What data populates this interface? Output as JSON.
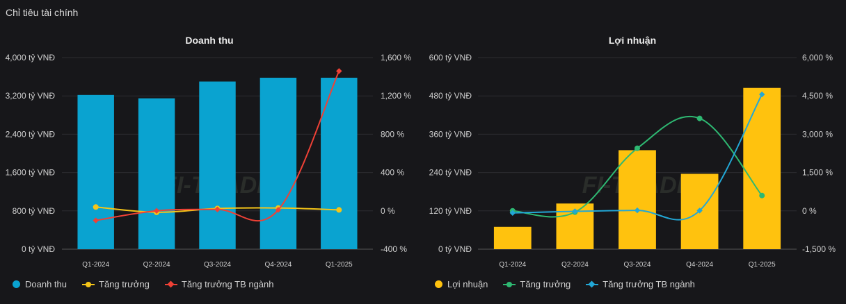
{
  "header": {
    "title": "Chỉ tiêu tài chính"
  },
  "colors": {
    "background": "#17171a",
    "revenue_bar": "#0aa3d0",
    "profit_bar": "#ffc20e",
    "growth_left": "#f5c518",
    "industry_left": "#ef4136",
    "growth_right": "#2eb872",
    "industry_right": "#22a7d6"
  },
  "legends": {
    "left": [
      "Doanh thu",
      "Tăng trưởng",
      "Tăng trưởng TB ngành"
    ],
    "right": [
      "Lợi nhuận",
      "Tăng trưởng",
      "Tăng trưởng TB ngành"
    ]
  },
  "chart_data": [
    {
      "type": "bar",
      "title": "Doanh thu",
      "categories": [
        "Q1-2024",
        "Q2-2024",
        "Q3-2024",
        "Q4-2024",
        "Q1-2025"
      ],
      "ylim": [
        0,
        4000
      ],
      "y2lim": [
        -400,
        1600
      ],
      "yticks": [
        "0 tỷ VNĐ",
        "800 tỷ VNĐ",
        "1,600 tỷ VNĐ",
        "2,400 tỷ VNĐ",
        "3,200 tỷ VNĐ",
        "4,000 tỷ VNĐ"
      ],
      "y2ticks": [
        "-400 %",
        "0 %",
        "400 %",
        "800 %",
        "1,200 %",
        "1,600 %"
      ],
      "series": [
        {
          "name": "Doanh thu",
          "kind": "bar",
          "axis": "left",
          "values": [
            3220,
            3150,
            3500,
            3580,
            3580
          ]
        },
        {
          "name": "Tăng trưởng",
          "kind": "line",
          "axis": "right",
          "marker": "circle",
          "values": [
            40,
            -15,
            25,
            30,
            10
          ]
        },
        {
          "name": "Tăng trưởng TB ngành",
          "kind": "line",
          "axis": "right",
          "marker": "diamond",
          "values": [
            -100,
            0,
            15,
            10,
            1460
          ]
        }
      ],
      "grid": true,
      "legend": "bottom-left"
    },
    {
      "type": "bar",
      "title": "Lợi nhuận",
      "categories": [
        "Q1-2024",
        "Q2-2024",
        "Q3-2024",
        "Q4-2024",
        "Q1-2025"
      ],
      "ylim": [
        0,
        600
      ],
      "y2lim": [
        -1500,
        6000
      ],
      "yticks": [
        "0 tỷ VNĐ",
        "120 tỷ VNĐ",
        "240 tỷ VNĐ",
        "360 tỷ VNĐ",
        "480 tỷ VNĐ",
        "600 tỷ VNĐ"
      ],
      "y2ticks": [
        "-1,500 %",
        "0 %",
        "1,500 %",
        "3,000 %",
        "4,500 %",
        "6,000 %"
      ],
      "series": [
        {
          "name": "Lợi nhuận",
          "kind": "bar",
          "axis": "left",
          "values": [
            70,
            143,
            310,
            236,
            505
          ]
        },
        {
          "name": "Tăng trưởng",
          "kind": "line",
          "axis": "right",
          "marker": "circle",
          "values": [
            0,
            -50,
            2450,
            3620,
            600
          ]
        },
        {
          "name": "Tăng trưởng TB ngành",
          "kind": "line",
          "axis": "right",
          "marker": "diamond",
          "values": [
            -80,
            -20,
            20,
            10,
            4560
          ]
        }
      ],
      "grid": true,
      "legend": "bottom-left"
    }
  ]
}
